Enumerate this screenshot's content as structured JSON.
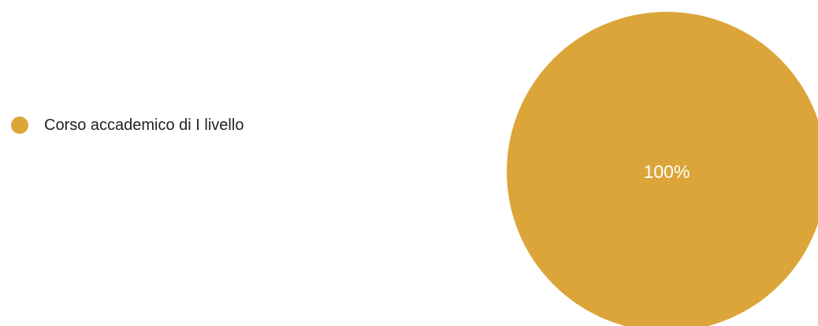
{
  "chart_data": {
    "type": "pie",
    "series": [
      {
        "name": "Corso accademico di I livello",
        "value": 100,
        "label": "100%",
        "color": "#DBA53A"
      }
    ],
    "legend_position": "left"
  }
}
